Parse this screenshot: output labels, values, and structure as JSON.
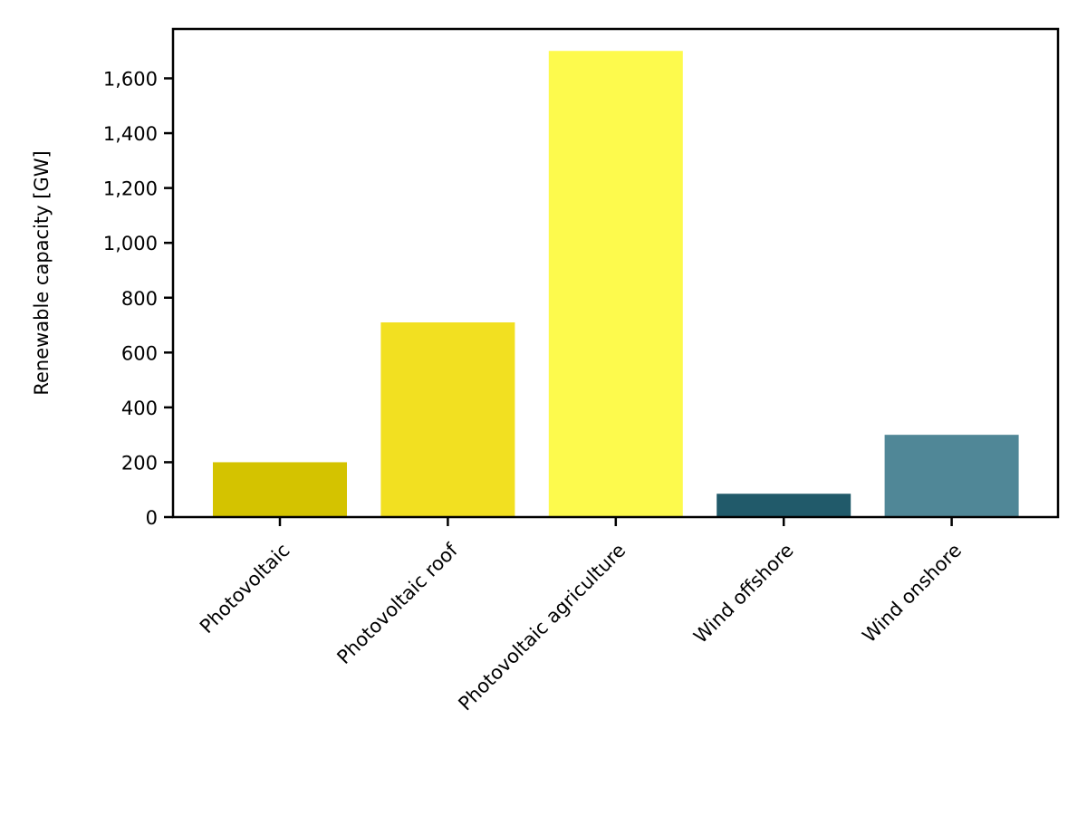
{
  "chart_data": {
    "type": "bar",
    "title": "",
    "xlabel": "",
    "ylabel": "Renewable capacity [GW]",
    "categories": [
      "Photovoltaic",
      "Photovoltaic roof",
      "Photovoltaic agriculture",
      "Wind offshore",
      "Wind onshore"
    ],
    "values": [
      200,
      710,
      1700,
      85,
      300
    ],
    "colors": [
      "#d4c300",
      "#f2e021",
      "#fdfa4d",
      "#215a6a",
      "#508797"
    ],
    "ylim": [
      0,
      1780
    ],
    "yticks": [
      0,
      200,
      400,
      600,
      800,
      1000,
      1200,
      1400,
      1600
    ],
    "ytick_labels": [
      "0",
      "200",
      "400",
      "600",
      "800",
      "1,000",
      "1,200",
      "1,400",
      "1,600"
    ],
    "grid": false,
    "legend": "none"
  }
}
